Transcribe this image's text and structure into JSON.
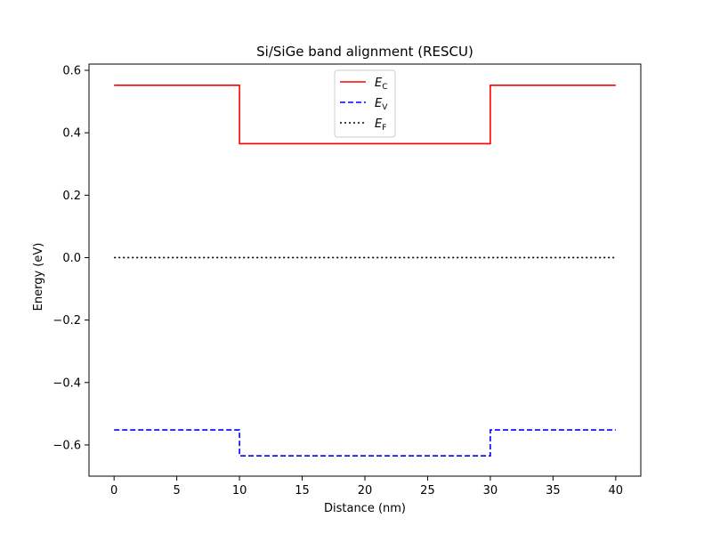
{
  "chart_data": {
    "type": "line",
    "title": "Si/SiGe band alignment (RESCU)",
    "xlabel": "Distance (nm)",
    "ylabel": "Energy (eV)",
    "xlim": [
      -2,
      42
    ],
    "ylim": [
      -0.7,
      0.62
    ],
    "xticks": [
      0,
      5,
      10,
      15,
      20,
      25,
      30,
      35,
      40
    ],
    "xtick_labels": [
      "0",
      "5",
      "10",
      "15",
      "20",
      "25",
      "30",
      "35",
      "40"
    ],
    "yticks": [
      -0.6,
      -0.4,
      -0.2,
      0.0,
      0.2,
      0.4,
      0.6
    ],
    "ytick_labels": [
      "−0.6",
      "−0.4",
      "−0.2",
      "0.0",
      "0.2",
      "0.4",
      "0.6"
    ],
    "grid": false,
    "legend_position": "top-center",
    "series": [
      {
        "name": "E_C",
        "legend_main": "E",
        "legend_sub": "C",
        "color": "#ff0000",
        "style": "solid",
        "x": [
          0,
          10,
          10,
          30,
          30,
          40
        ],
        "y": [
          0.552,
          0.552,
          0.365,
          0.365,
          0.552,
          0.552
        ]
      },
      {
        "name": "E_V",
        "legend_main": "E",
        "legend_sub": "V",
        "color": "#0000ff",
        "style": "dashed",
        "x": [
          0,
          10,
          10,
          30,
          30,
          40
        ],
        "y": [
          -0.552,
          -0.552,
          -0.635,
          -0.635,
          -0.552,
          -0.552
        ]
      },
      {
        "name": "E_F",
        "legend_main": "E",
        "legend_sub": "F",
        "color": "#000000",
        "style": "dotted",
        "x": [
          0,
          40
        ],
        "y": [
          0.0,
          0.0
        ]
      }
    ]
  }
}
